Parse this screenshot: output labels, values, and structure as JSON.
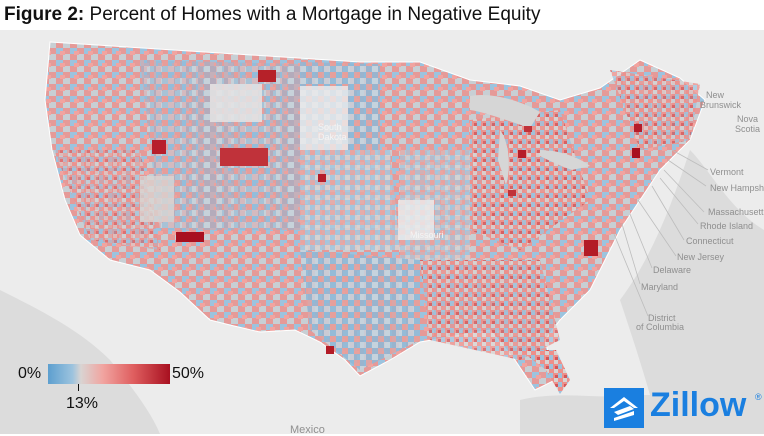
{
  "title": {
    "prefix": "Figure 2:",
    "text": "Percent of Homes with a Mortgage in Negative Equity"
  },
  "legend": {
    "min": "0%",
    "max": "50%",
    "mid": "13%"
  },
  "brand": {
    "name": "Zillow",
    "color": "#1a7fe0"
  },
  "map_labels": {
    "nb": "New",
    "nb2": "Brunswick",
    "ns": "Nova",
    "ns2": "Scotia",
    "vt": "Vermont",
    "nh": "New Hampsh",
    "ma": "Massachusett",
    "ri": "Rhode Island",
    "ct": "Connecticut",
    "nj": "New Jersey",
    "de": "Delaware",
    "md": "Maryland",
    "dc": "District",
    "dc2": "of Columbia",
    "mx": "Mexico",
    "sd": "South",
    "sd2": "Dakota",
    "ia": "Iowa",
    "mo": "Missouri"
  },
  "colors": {
    "low": "#5d9fcf",
    "neutral": "#d9d4d2",
    "high": "#a81020",
    "land": "#ececec",
    "water": "#dadada"
  }
}
